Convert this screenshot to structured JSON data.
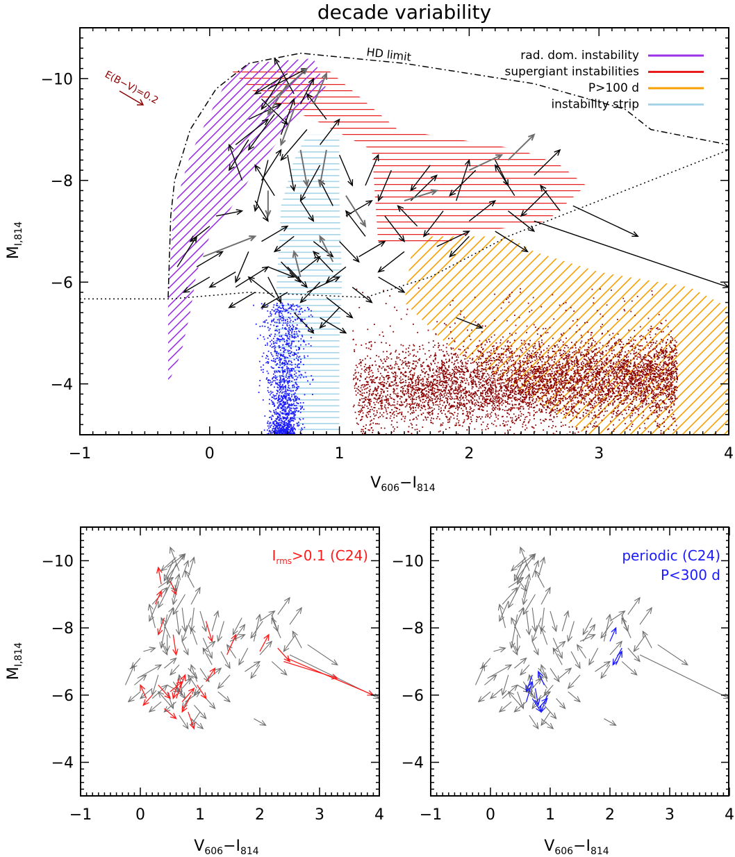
{
  "chart_data": [
    {
      "type": "scatter",
      "title": "decade variability",
      "xlabel": "V",
      "xlabel_sub1": "606",
      "xlabel_minus": "−I",
      "xlabel_sub2": "814",
      "ylabel": "M",
      "ylabel_sub": "I,814",
      "xlim": [
        -1,
        4
      ],
      "ylim": [
        -3,
        -11
      ],
      "xticks": [
        "−1",
        "0",
        "1",
        "2",
        "3",
        "4"
      ],
      "yticks": [
        "−10",
        "−8",
        "−6",
        "−4"
      ],
      "legend_position": "top-right",
      "legend": [
        {
          "label": "rad. dom. instability",
          "color": "#9b30e6"
        },
        {
          "label": "supergiant instabilities",
          "color": "#e81c1c"
        },
        {
          "label": "P>100 d",
          "color": "#f5a000"
        },
        {
          "label": "instability strip",
          "color": "#a6d4e8"
        }
      ],
      "annotations": {
        "hd_limit": "HD limit",
        "reddening": "E(B−V)=0.2"
      },
      "hd_limit_curve": [
        [
          -0.32,
          -5.7
        ],
        [
          -0.3,
          -7.3
        ],
        [
          -0.27,
          -8.0
        ],
        [
          -0.15,
          -9.0
        ],
        [
          0.05,
          -9.8
        ],
        [
          0.3,
          -10.3
        ],
        [
          0.7,
          -10.5
        ],
        [
          1.5,
          -10.3
        ],
        [
          2.5,
          -9.9
        ],
        [
          3.2,
          -9.4
        ],
        [
          3.4,
          -9.0
        ],
        [
          4.0,
          -8.7
        ]
      ],
      "lower_bound_curve": [
        [
          -1.0,
          -5.67
        ],
        [
          -0.3,
          -5.67
        ],
        [
          0.3,
          -5.8
        ],
        [
          1.2,
          -5.7
        ],
        [
          1.7,
          -6.1
        ],
        [
          2.3,
          -6.9
        ],
        [
          3.0,
          -7.6
        ],
        [
          4.0,
          -8.6
        ]
      ],
      "series": [
        {
          "name": "blue stars",
          "color": "#1a1aff",
          "x_center": 0.57,
          "x_spread": 0.08,
          "y_range": [
            -3.0,
            -5.6
          ],
          "count": 1400
        },
        {
          "name": "red stars",
          "color": "#8b0000",
          "x_range": [
            1.1,
            3.6
          ],
          "y_center": -4.2,
          "y_spread": 0.35,
          "count": 5500
        }
      ],
      "regions": [
        {
          "name": "rad. dom. instability",
          "polygon": [
            [
              -0.32,
              -4.0
            ],
            [
              -0.32,
              -5.8
            ],
            [
              -0.28,
              -7.4
            ],
            [
              -0.15,
              -8.5
            ],
            [
              0.0,
              -9.3
            ],
            [
              0.1,
              -9.8
            ],
            [
              0.3,
              -10.3
            ],
            [
              0.8,
              -10.4
            ],
            [
              0.9,
              -9.8
            ],
            [
              0.6,
              -9.0
            ],
            [
              0.35,
              -8.2
            ],
            [
              0.15,
              -7.4
            ],
            [
              0.0,
              -6.9
            ],
            [
              -0.1,
              -6.2
            ],
            [
              -0.15,
              -5.4
            ],
            [
              -0.22,
              -4.6
            ]
          ]
        },
        {
          "name": "supergiant instabilities",
          "polygon": [
            [
              0.15,
              -10.2
            ],
            [
              0.9,
              -10.2
            ],
            [
              1.45,
              -9.0
            ],
            [
              2.4,
              -8.6
            ],
            [
              2.7,
              -8.3
            ],
            [
              2.9,
              -7.9
            ],
            [
              2.6,
              -7.2
            ],
            [
              2.0,
              -6.95
            ],
            [
              1.8,
              -6.75
            ],
            [
              1.3,
              -6.7
            ],
            [
              1.25,
              -8.6
            ],
            [
              0.8,
              -9.2
            ],
            [
              0.4,
              -9.6
            ]
          ]
        },
        {
          "name": "P>100 d",
          "polygon": [
            [
              1.5,
              -5.6
            ],
            [
              1.55,
              -6.5
            ],
            [
              1.65,
              -6.9
            ],
            [
              2.3,
              -6.9
            ],
            [
              2.5,
              -6.6
            ],
            [
              3.0,
              -6.2
            ],
            [
              3.7,
              -5.9
            ],
            [
              4.0,
              -5.5
            ],
            [
              4.0,
              -3.0
            ],
            [
              2.9,
              -3.0
            ],
            [
              2.5,
              -3.7
            ],
            [
              1.9,
              -4.6
            ]
          ]
        },
        {
          "name": "instability strip",
          "polygon": [
            [
              0.5,
              -5.2
            ],
            [
              0.55,
              -7.5
            ],
            [
              0.65,
              -8.4
            ],
            [
              0.75,
              -8.9
            ],
            [
              1.0,
              -8.9
            ],
            [
              1.0,
              -7.6
            ],
            [
              1.02,
              -6.0
            ],
            [
              1.0,
              -4.8
            ],
            [
              1.0,
              -3.0
            ],
            [
              0.7,
              -3.0
            ],
            [
              0.5,
              -4.2
            ]
          ]
        }
      ]
    },
    {
      "type": "scatter",
      "title": "",
      "xlabel": "V",
      "xlabel_sub1": "606",
      "xlabel_minus": "−I",
      "xlabel_sub2": "814",
      "ylabel": "M",
      "ylabel_sub": "I,814",
      "xlim": [
        -1,
        4
      ],
      "ylim": [
        -3,
        -11
      ],
      "xticks": [
        "−1",
        "0",
        "1",
        "2",
        "3",
        "4"
      ],
      "yticks": [
        "−10",
        "−8",
        "−6",
        "−4"
      ],
      "legend_position": "top-right",
      "label_main": "I",
      "label_sub": "rms",
      "label_rest": ">0.1 (C24)",
      "highlight_color": "#ff1a1a",
      "base_color": "#6e6e6e"
    },
    {
      "type": "scatter",
      "title": "",
      "xlabel": "V",
      "xlabel_sub1": "606",
      "xlabel_minus": "−I",
      "xlabel_sub2": "814",
      "ylabel": "",
      "xlim": [
        -1,
        4
      ],
      "ylim": [
        -3,
        -11
      ],
      "xticks": [
        "−1",
        "0",
        "1",
        "2",
        "3",
        "4"
      ],
      "yticks": [
        "−10",
        "−8",
        "−6",
        "−4"
      ],
      "legend_position": "top-right",
      "label_line1": "periodic (C24)",
      "label_line2": "P<300 d",
      "highlight_color": "#1a1aff",
      "base_color": "#6e6e6e"
    }
  ],
  "arrows": [
    [
      0.55,
      -10.0,
      0.4,
      -9.4
    ],
    [
      0.45,
      -9.8,
      0.75,
      -10.2
    ],
    [
      0.6,
      -10.1,
      0.35,
      -9.7
    ],
    [
      0.4,
      -9.6,
      0.6,
      -9.1
    ],
    [
      0.65,
      -9.7,
      0.5,
      -10.4
    ],
    [
      0.3,
      -9.2,
      0.55,
      -9.5
    ],
    [
      0.5,
      -9.3,
      0.3,
      -8.6
    ],
    [
      0.7,
      -9.5,
      0.8,
      -10.0
    ],
    [
      0.3,
      -8.8,
      0.15,
      -8.2
    ],
    [
      0.2,
      -8.7,
      0.45,
      -9.2
    ],
    [
      0.55,
      -8.9,
      0.65,
      -9.6
    ],
    [
      0.75,
      -9.0,
      0.55,
      -8.4
    ],
    [
      0.9,
      -9.2,
      0.75,
      -9.7
    ],
    [
      0.85,
      -8.7,
      1.0,
      -9.2
    ],
    [
      0.45,
      -8.4,
      0.35,
      -7.4
    ],
    [
      0.6,
      -8.5,
      0.65,
      -7.8
    ],
    [
      0.4,
      -8.0,
      0.55,
      -8.6
    ],
    [
      0.25,
      -8.0,
      0.15,
      -8.7
    ],
    [
      0.85,
      -8.3,
      0.7,
      -7.6
    ],
    [
      1.0,
      -8.5,
      1.1,
      -7.9
    ],
    [
      0.5,
      -7.7,
      0.35,
      -8.3
    ],
    [
      0.35,
      -7.6,
      0.45,
      -7.2
    ],
    [
      0.7,
      -7.6,
      0.8,
      -7.2
    ],
    [
      0.95,
      -7.5,
      0.85,
      -8.0
    ],
    [
      1.05,
      -7.3,
      1.25,
      -7.6
    ],
    [
      1.2,
      -7.9,
      1.3,
      -8.5
    ],
    [
      1.4,
      -8.2,
      1.3,
      -7.6
    ],
    [
      1.55,
      -7.6,
      1.75,
      -8.1
    ],
    [
      1.7,
      -8.3,
      1.55,
      -7.8
    ],
    [
      1.9,
      -7.6,
      2.0,
      -8.4
    ],
    [
      2.05,
      -8.2,
      1.85,
      -7.7
    ],
    [
      2.2,
      -8.4,
      2.3,
      -7.9
    ],
    [
      2.35,
      -7.7,
      2.2,
      -8.3
    ],
    [
      2.5,
      -8.1,
      2.7,
      -8.6
    ],
    [
      2.6,
      -7.8,
      2.4,
      -7.3
    ],
    [
      2.7,
      -7.4,
      2.55,
      -7.9
    ],
    [
      2.3,
      -7.4,
      2.5,
      -7.0
    ],
    [
      2.0,
      -7.2,
      2.2,
      -7.6
    ],
    [
      1.8,
      -7.4,
      1.65,
      -6.9
    ],
    [
      1.6,
      -7.1,
      1.45,
      -7.5
    ],
    [
      1.35,
      -7.3,
      1.5,
      -6.8
    ],
    [
      1.2,
      -6.9,
      1.05,
      -7.4
    ],
    [
      1.0,
      -6.8,
      1.15,
      -6.4
    ],
    [
      2.8,
      -7.5,
      3.3,
      -6.9
    ],
    [
      2.5,
      -7.2,
      4.0,
      -5.9
    ],
    [
      2.2,
      -7.0,
      2.45,
      -6.6
    ],
    [
      2.0,
      -6.9,
      1.85,
      -6.5
    ],
    [
      1.75,
      -6.7,
      2.0,
      -7.0
    ],
    [
      1.5,
      -6.6,
      1.3,
      -6.2
    ],
    [
      1.3,
      -6.1,
      1.5,
      -5.8
    ],
    [
      0.3,
      -6.6,
      0.2,
      -6.0
    ],
    [
      0.2,
      -5.9,
      0.45,
      -6.3
    ],
    [
      0.45,
      -6.1,
      0.55,
      -5.6
    ],
    [
      0.6,
      -5.8,
      0.4,
      -5.5
    ],
    [
      0.55,
      -6.4,
      0.7,
      -6.0
    ],
    [
      0.7,
      -6.2,
      0.85,
      -6.5
    ],
    [
      0.85,
      -6.0,
      0.7,
      -5.6
    ],
    [
      0.75,
      -5.8,
      1.0,
      -6.1
    ],
    [
      0.95,
      -6.2,
      0.8,
      -6.6
    ],
    [
      0.9,
      -5.7,
      1.1,
      -5.3
    ],
    [
      1.0,
      -5.5,
      0.85,
      -5.1
    ],
    [
      0.65,
      -5.4,
      0.8,
      -5.0
    ],
    [
      0.5,
      -5.7,
      0.3,
      -6.1
    ],
    [
      0.35,
      -5.8,
      0.15,
      -5.5
    ],
    [
      0.2,
      -6.2,
      0.0,
      -5.9
    ],
    [
      0.0,
      -6.1,
      -0.2,
      -5.8
    ],
    [
      -0.1,
      -6.3,
      0.1,
      -6.6
    ],
    [
      0.4,
      -6.8,
      0.6,
      -7.1
    ],
    [
      0.65,
      -6.9,
      0.5,
      -6.6
    ],
    [
      0.8,
      -6.8,
      0.95,
      -6.5
    ],
    [
      1.05,
      -6.3,
      0.9,
      -6.0
    ],
    [
      1.1,
      -5.9,
      1.25,
      -5.6
    ],
    [
      1.15,
      -6.5,
      1.35,
      -6.8
    ],
    [
      0.85,
      -5.3,
      1.05,
      -5.0
    ],
    [
      -0.25,
      -6.3,
      -0.1,
      -6.9
    ],
    [
      0.0,
      -7.1,
      -0.15,
      -6.8
    ],
    [
      0.05,
      -7.3,
      0.25,
      -7.4
    ],
    [
      1.9,
      -5.3,
      2.1,
      -5.1
    ],
    [
      0.45,
      -6.3,
      0.65,
      -6.1
    ],
    [
      0.6,
      -6.3,
      0.75,
      -5.9
    ]
  ],
  "grey_arrows": [
    [
      0.6,
      -9.9,
      0.45,
      -9.3
    ],
    [
      0.45,
      -9.5,
      0.75,
      -10.2
    ],
    [
      0.65,
      -9.4,
      0.55,
      -8.7
    ],
    [
      0.8,
      -9.5,
      0.9,
      -10.1
    ],
    [
      0.7,
      -8.6,
      0.75,
      -7.9
    ],
    [
      0.45,
      -7.8,
      0.45,
      -7.3
    ],
    [
      0.9,
      -8.6,
      0.85,
      -7.9
    ],
    [
      1.05,
      -7.7,
      1.2,
      -7.1
    ],
    [
      2.3,
      -8.4,
      2.5,
      -8.9
    ],
    [
      2.0,
      -8.2,
      2.25,
      -8.5
    ],
    [
      1.5,
      -7.6,
      1.75,
      -7.8
    ],
    [
      -0.05,
      -6.5,
      0.35,
      -6.9
    ],
    [
      0.7,
      -6.1,
      0.65,
      -6.6
    ],
    [
      0.95,
      -6.4,
      0.85,
      -6.9
    ]
  ],
  "red_subset": [
    [
      0.35,
      -9.3,
      0.3,
      -9.8
    ],
    [
      0.5,
      -9.4,
      0.6,
      -9.0
    ],
    [
      0.25,
      -8.7,
      0.35,
      -9.1
    ],
    [
      0.4,
      -8.3,
      0.3,
      -7.8
    ],
    [
      0.55,
      -7.8,
      0.6,
      -7.2
    ],
    [
      1.1,
      -8.2,
      1.2,
      -7.6
    ],
    [
      1.45,
      -7.2,
      1.6,
      -7.8
    ],
    [
      2.0,
      -7.3,
      2.15,
      -7.8
    ],
    [
      2.3,
      -7.4,
      2.5,
      -7.0
    ],
    [
      2.4,
      -7.0,
      3.3,
      -6.5
    ],
    [
      2.45,
      -7.1,
      3.9,
      -6.0
    ],
    [
      0.3,
      -6.3,
      0.5,
      -5.9
    ],
    [
      0.5,
      -6.1,
      0.7,
      -6.4
    ],
    [
      0.7,
      -5.8,
      0.9,
      -6.2
    ],
    [
      0.85,
      -6.0,
      0.7,
      -5.5
    ],
    [
      0.95,
      -6.3,
      1.1,
      -5.9
    ],
    [
      0.65,
      -6.5,
      0.55,
      -5.9
    ],
    [
      0.8,
      -5.5,
      0.9,
      -5.0
    ],
    [
      0.4,
      -5.6,
      0.6,
      -5.3
    ],
    [
      0.2,
      -6.0,
      0.05,
      -5.7
    ],
    [
      0.6,
      -5.9,
      0.75,
      -6.6
    ],
    [
      1.1,
      -6.4,
      1.25,
      -6.8
    ],
    [
      0.1,
      -5.9,
      0.0,
      -6.3
    ]
  ],
  "blue_subset": [
    [
      0.7,
      -6.6,
      0.6,
      -6.1
    ],
    [
      0.75,
      -6.2,
      0.8,
      -5.7
    ],
    [
      0.9,
      -6.3,
      0.8,
      -6.7
    ],
    [
      0.7,
      -5.9,
      0.85,
      -5.5
    ],
    [
      0.6,
      -5.8,
      0.7,
      -6.4
    ],
    [
      0.95,
      -6.0,
      0.85,
      -5.5
    ],
    [
      2.0,
      -7.6,
      2.1,
      -8.0
    ],
    [
      2.2,
      -7.4,
      2.05,
      -6.9
    ],
    [
      2.1,
      -6.9,
      2.2,
      -7.3
    ],
    [
      0.8,
      -5.6,
      0.95,
      -5.9
    ]
  ]
}
